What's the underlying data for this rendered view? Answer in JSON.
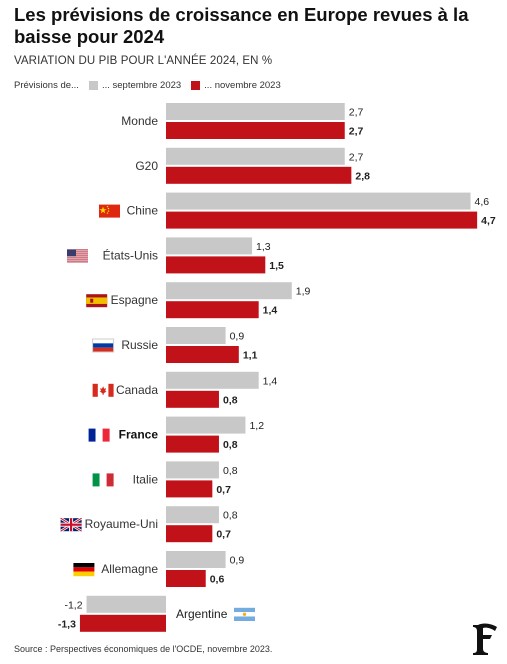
{
  "title": "Les prévisions de croissance en Europe revues à la baisse pour 2024",
  "subtitle": "VARIATION DU PIB POUR L'ANNÉE 2024, EN %",
  "legend": {
    "prefix": "Prévisions de...",
    "series_a": "... septembre 2023",
    "series_b": "... novembre 2023"
  },
  "source": "Source : Perspectives économiques de l'OCDE, novembre 2023.",
  "colors": {
    "september": "#c8c8c8",
    "november": "#c1121a"
  },
  "chart_data": {
    "type": "bar",
    "orientation": "horizontal",
    "categories": [
      "Monde",
      "G20",
      "Chine",
      "États-Unis",
      "Espagne",
      "Russie",
      "Canada",
      "France",
      "Italie",
      "Royaume-Uni",
      "Allemagne",
      "Argentine"
    ],
    "flags": [
      "",
      "",
      "china",
      "usa",
      "spain",
      "russia",
      "canada",
      "france",
      "italy",
      "uk",
      "germany",
      "argentina"
    ],
    "highlight": "France",
    "series": [
      {
        "name": "... septembre 2023",
        "values": [
          2.7,
          2.7,
          4.6,
          1.3,
          1.9,
          0.9,
          1.4,
          1.2,
          0.8,
          0.8,
          0.9,
          -1.2
        ]
      },
      {
        "name": "... novembre 2023",
        "values": [
          2.7,
          2.8,
          4.7,
          1.5,
          1.4,
          1.1,
          0.8,
          0.8,
          0.7,
          0.7,
          0.6,
          -1.3
        ]
      }
    ],
    "value_labels": [
      [
        "2,7",
        "2,7",
        "4,6",
        "1,3",
        "1,9",
        "0,9",
        "1,4",
        "1,2",
        "0,8",
        "0,8",
        "0,9",
        "-1,2"
      ],
      [
        "2,7",
        "2,8",
        "4,7",
        "1,5",
        "1,4",
        "1,1",
        "0,8",
        "0,8",
        "0,7",
        "0,7",
        "0,6",
        "-1,3"
      ]
    ]
  }
}
